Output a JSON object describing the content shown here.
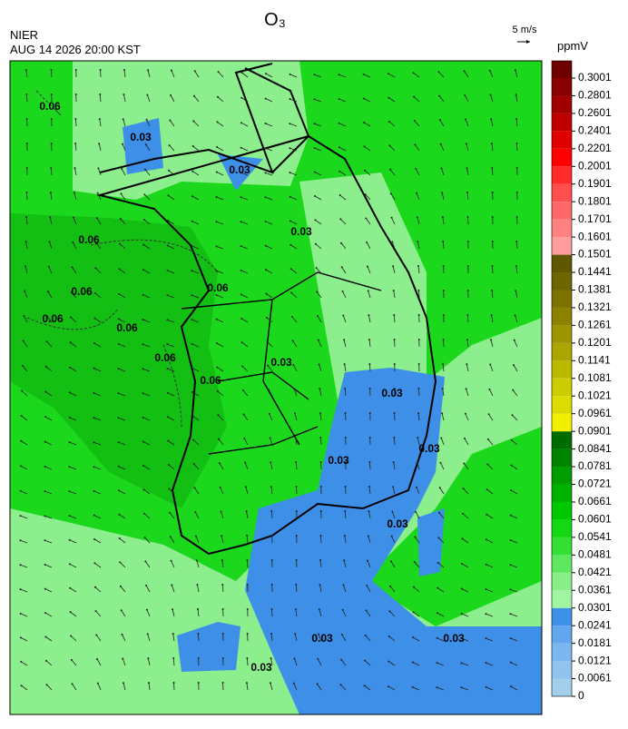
{
  "header": {
    "title": "O₃",
    "agency": "NIER",
    "timestamp": "AUG 14 2026 20:00 KST",
    "wind_scale": "5 m/s"
  },
  "colorbar": {
    "unit": "ppmV",
    "levels": [
      0,
      0.0061,
      0.0121,
      0.0181,
      0.0241,
      0.0301,
      0.0361,
      0.0421,
      0.0481,
      0.0541,
      0.0601,
      0.0661,
      0.0721,
      0.0781,
      0.0841,
      0.0901,
      0.0961,
      0.1021,
      0.1081,
      0.1141,
      0.1201,
      0.1261,
      0.1321,
      0.1381,
      0.1441,
      0.1501,
      0.1601,
      0.1701,
      0.1801,
      0.1901,
      0.2001,
      0.2201,
      0.2401,
      0.2601,
      0.2801,
      0.3001
    ],
    "colors": [
      "#a3cfec",
      "#90c3ee",
      "#7db7ef",
      "#62a6ee",
      "#3d8fe8",
      "#a0f5a0",
      "#88ef88",
      "#5fe85f",
      "#33e033",
      "#14d814",
      "#00c800",
      "#00b200",
      "#009c00",
      "#008400",
      "#006c00",
      "#f0f000",
      "#dcdc00",
      "#cccc00",
      "#bcb800",
      "#aca400",
      "#9c9400",
      "#8c8200",
      "#7c7200",
      "#6e6400",
      "#605800",
      "#ff9c9c",
      "#ff8282",
      "#ff6868",
      "#ff4e4e",
      "#ff2a2a",
      "#ff0000",
      "#e00000",
      "#c00000",
      "#a00000",
      "#880000",
      "#6e0000"
    ]
  },
  "map": {
    "contour_labels": [
      "0.06",
      "0.06",
      "0.06",
      "0.06",
      "0.06",
      "0.06",
      "0.06",
      "0.06",
      "0.03",
      "0.03",
      "0.03",
      "0.03",
      "0.03",
      "0.03",
      "0.03",
      "0.03",
      "0.03",
      "0.03",
      "0.03"
    ]
  }
}
